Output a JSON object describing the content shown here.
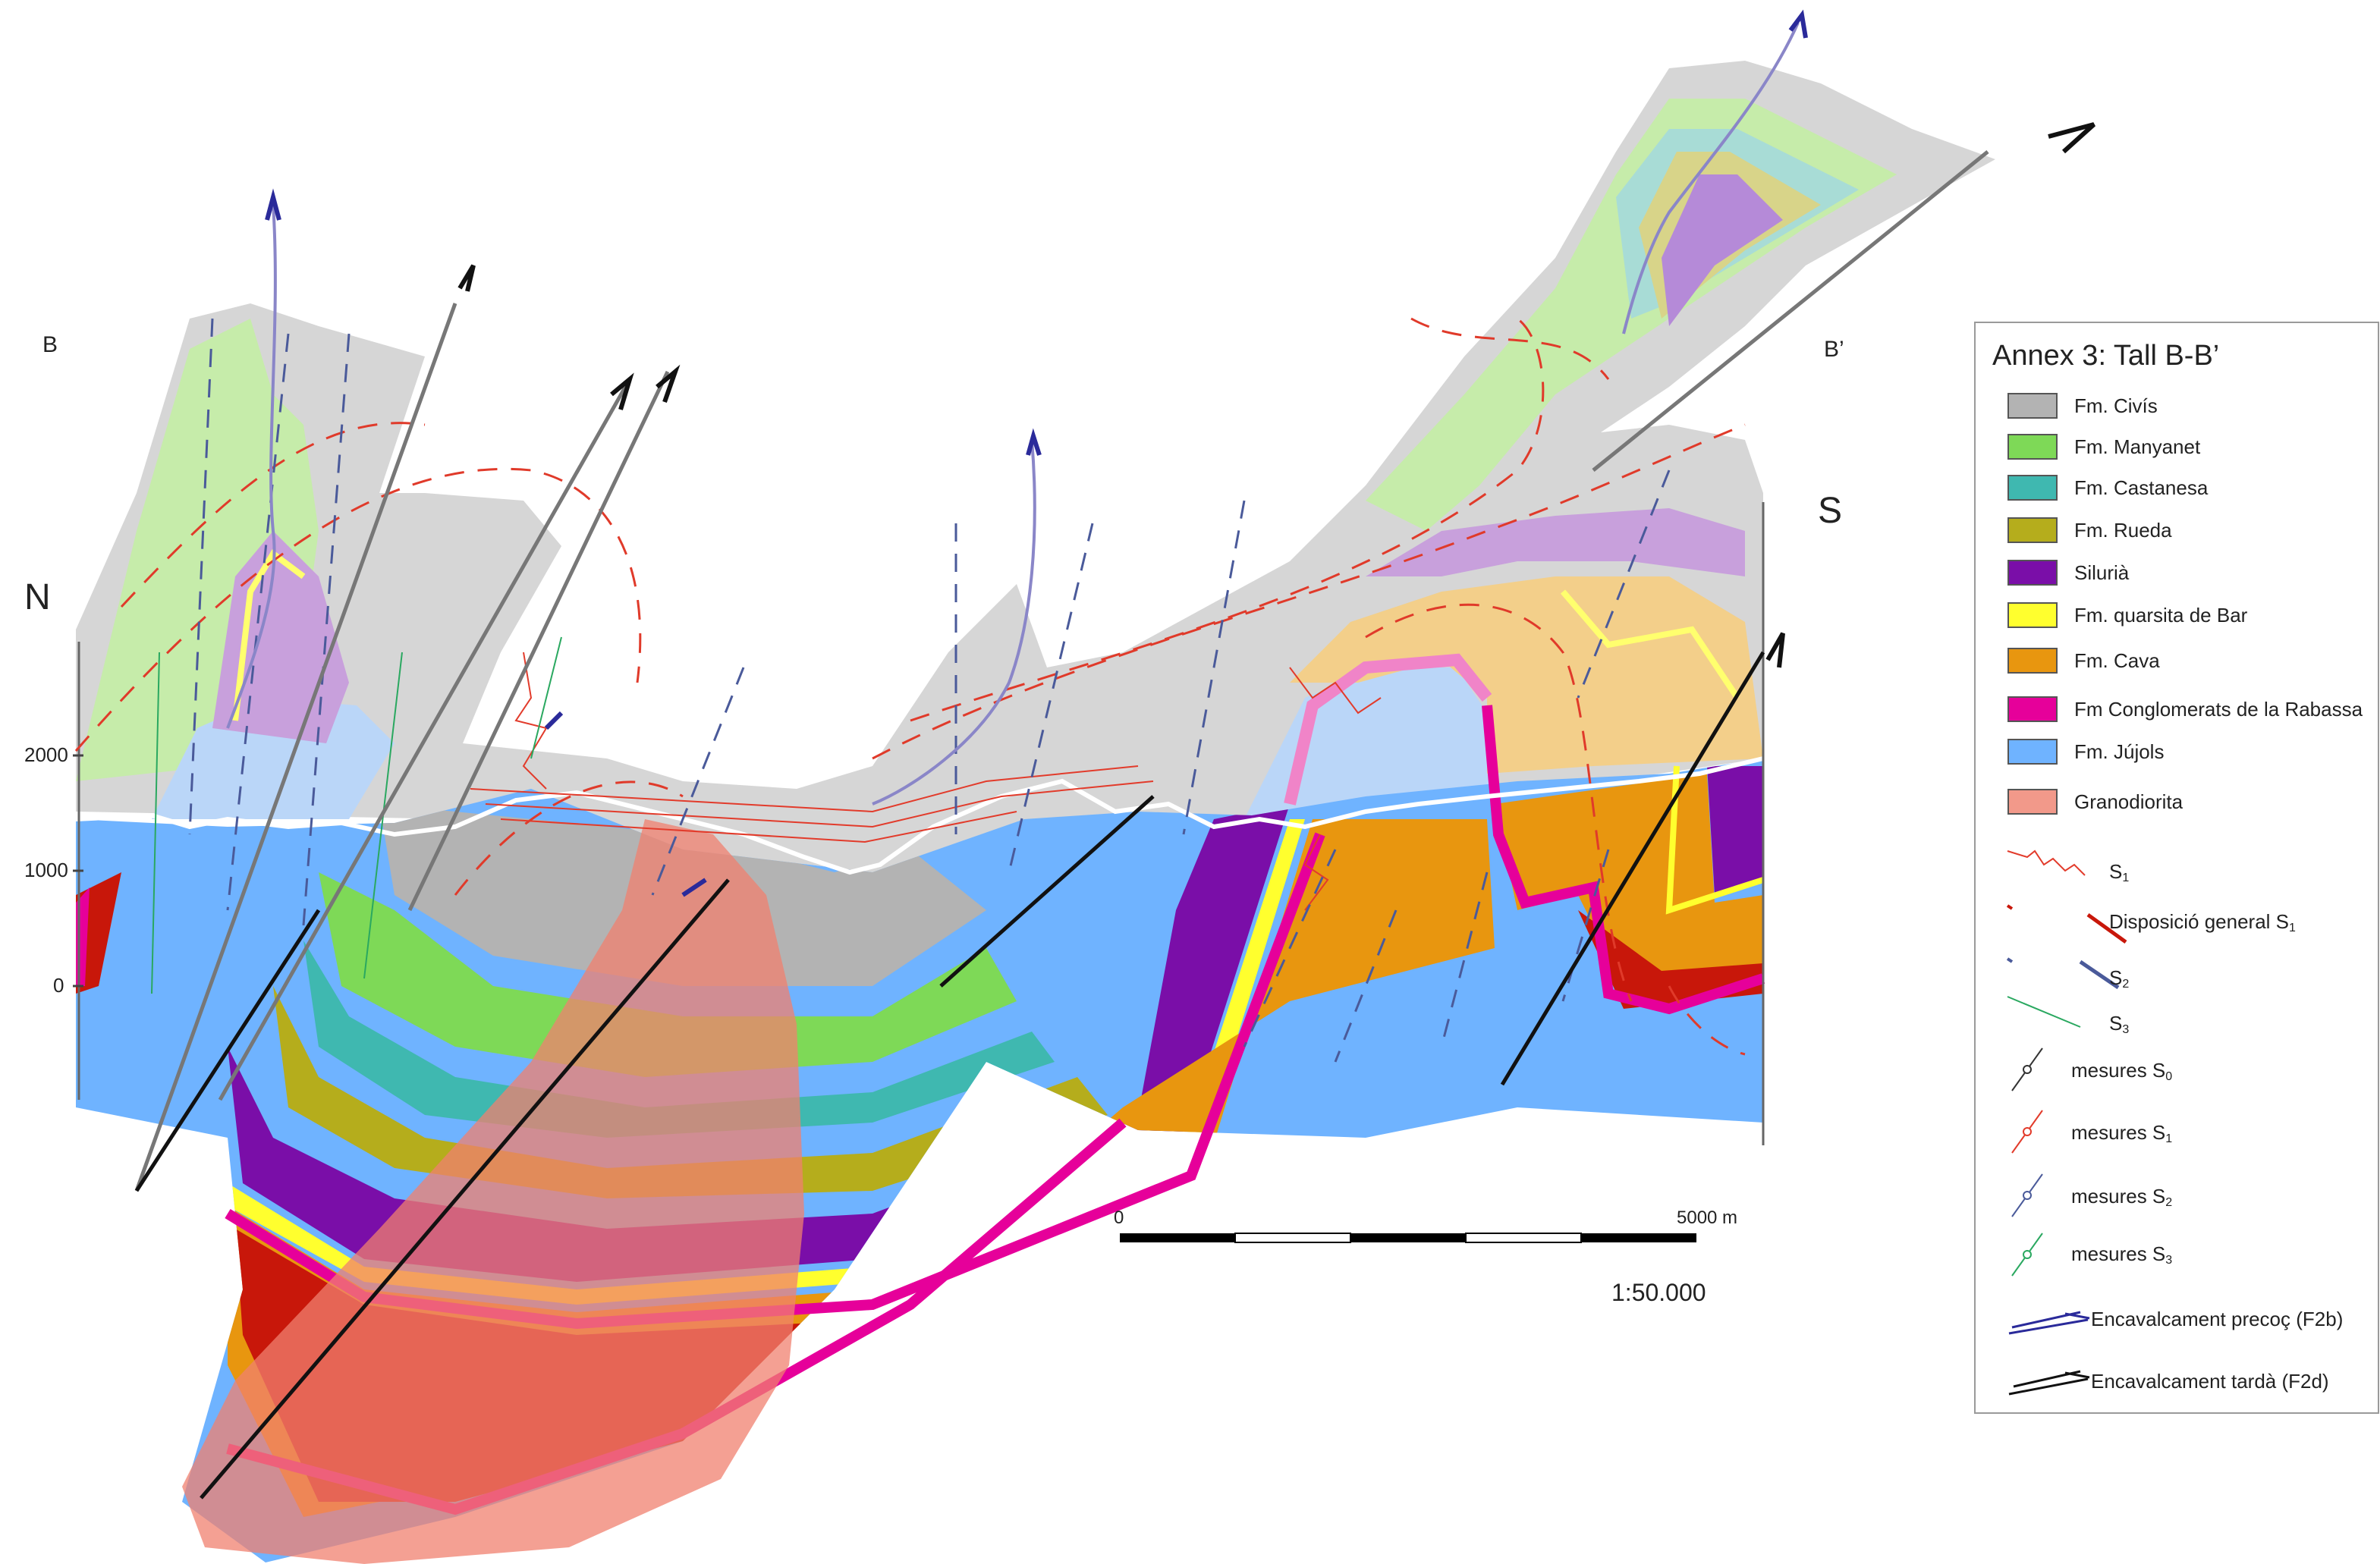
{
  "section": {
    "left_end": "B",
    "right_end": "B’",
    "north": "N",
    "south": "S"
  },
  "axis": {
    "ticks": [
      "2000",
      "1000",
      "0"
    ]
  },
  "scale": {
    "start": "0",
    "end": "5000 m",
    "ratio": "1:50.000"
  },
  "legend": {
    "title": "Annex 3: Tall B-B’",
    "units": [
      {
        "label": "Fm. Civís",
        "color": "#b3b3b3"
      },
      {
        "label": "Fm. Manyanet",
        "color": "#7ed957"
      },
      {
        "label": "Fm. Castanesa",
        "color": "#3fb8b0"
      },
      {
        "label": "Fm. Rueda",
        "color": "#b5ad1c"
      },
      {
        "label": "Silurià",
        "color": "#7a0ea8"
      },
      {
        "label": "Fm. quarsita de  Bar",
        "color": "#ffff2e"
      },
      {
        "label": "Fm. Cava",
        "color": "#e8960f"
      },
      {
        "label": "Fm Conglomerats de la Rabassa",
        "color": "#e6009a"
      },
      {
        "label": "Fm. Jújols",
        "color": "#6fb3ff"
      },
      {
        "label": "Granodiorita",
        "color": "#f2998a"
      }
    ],
    "symbols": [
      {
        "base": "S",
        "sub": "1"
      },
      {
        "base": "Disposició general S",
        "sub": "1"
      },
      {
        "base": "S",
        "sub": "2"
      },
      {
        "base": "S",
        "sub": "3"
      },
      {
        "base": "mesures S",
        "sub": "0"
      },
      {
        "base": "mesures S",
        "sub": "1"
      },
      {
        "base": "mesures S",
        "sub": "2"
      },
      {
        "base": "mesures S",
        "sub": "3"
      },
      {
        "base": "Encavalcament precoç (F2b)",
        "sub": ""
      },
      {
        "base": "Encavalcament tardà (F2d)",
        "sub": ""
      }
    ]
  }
}
